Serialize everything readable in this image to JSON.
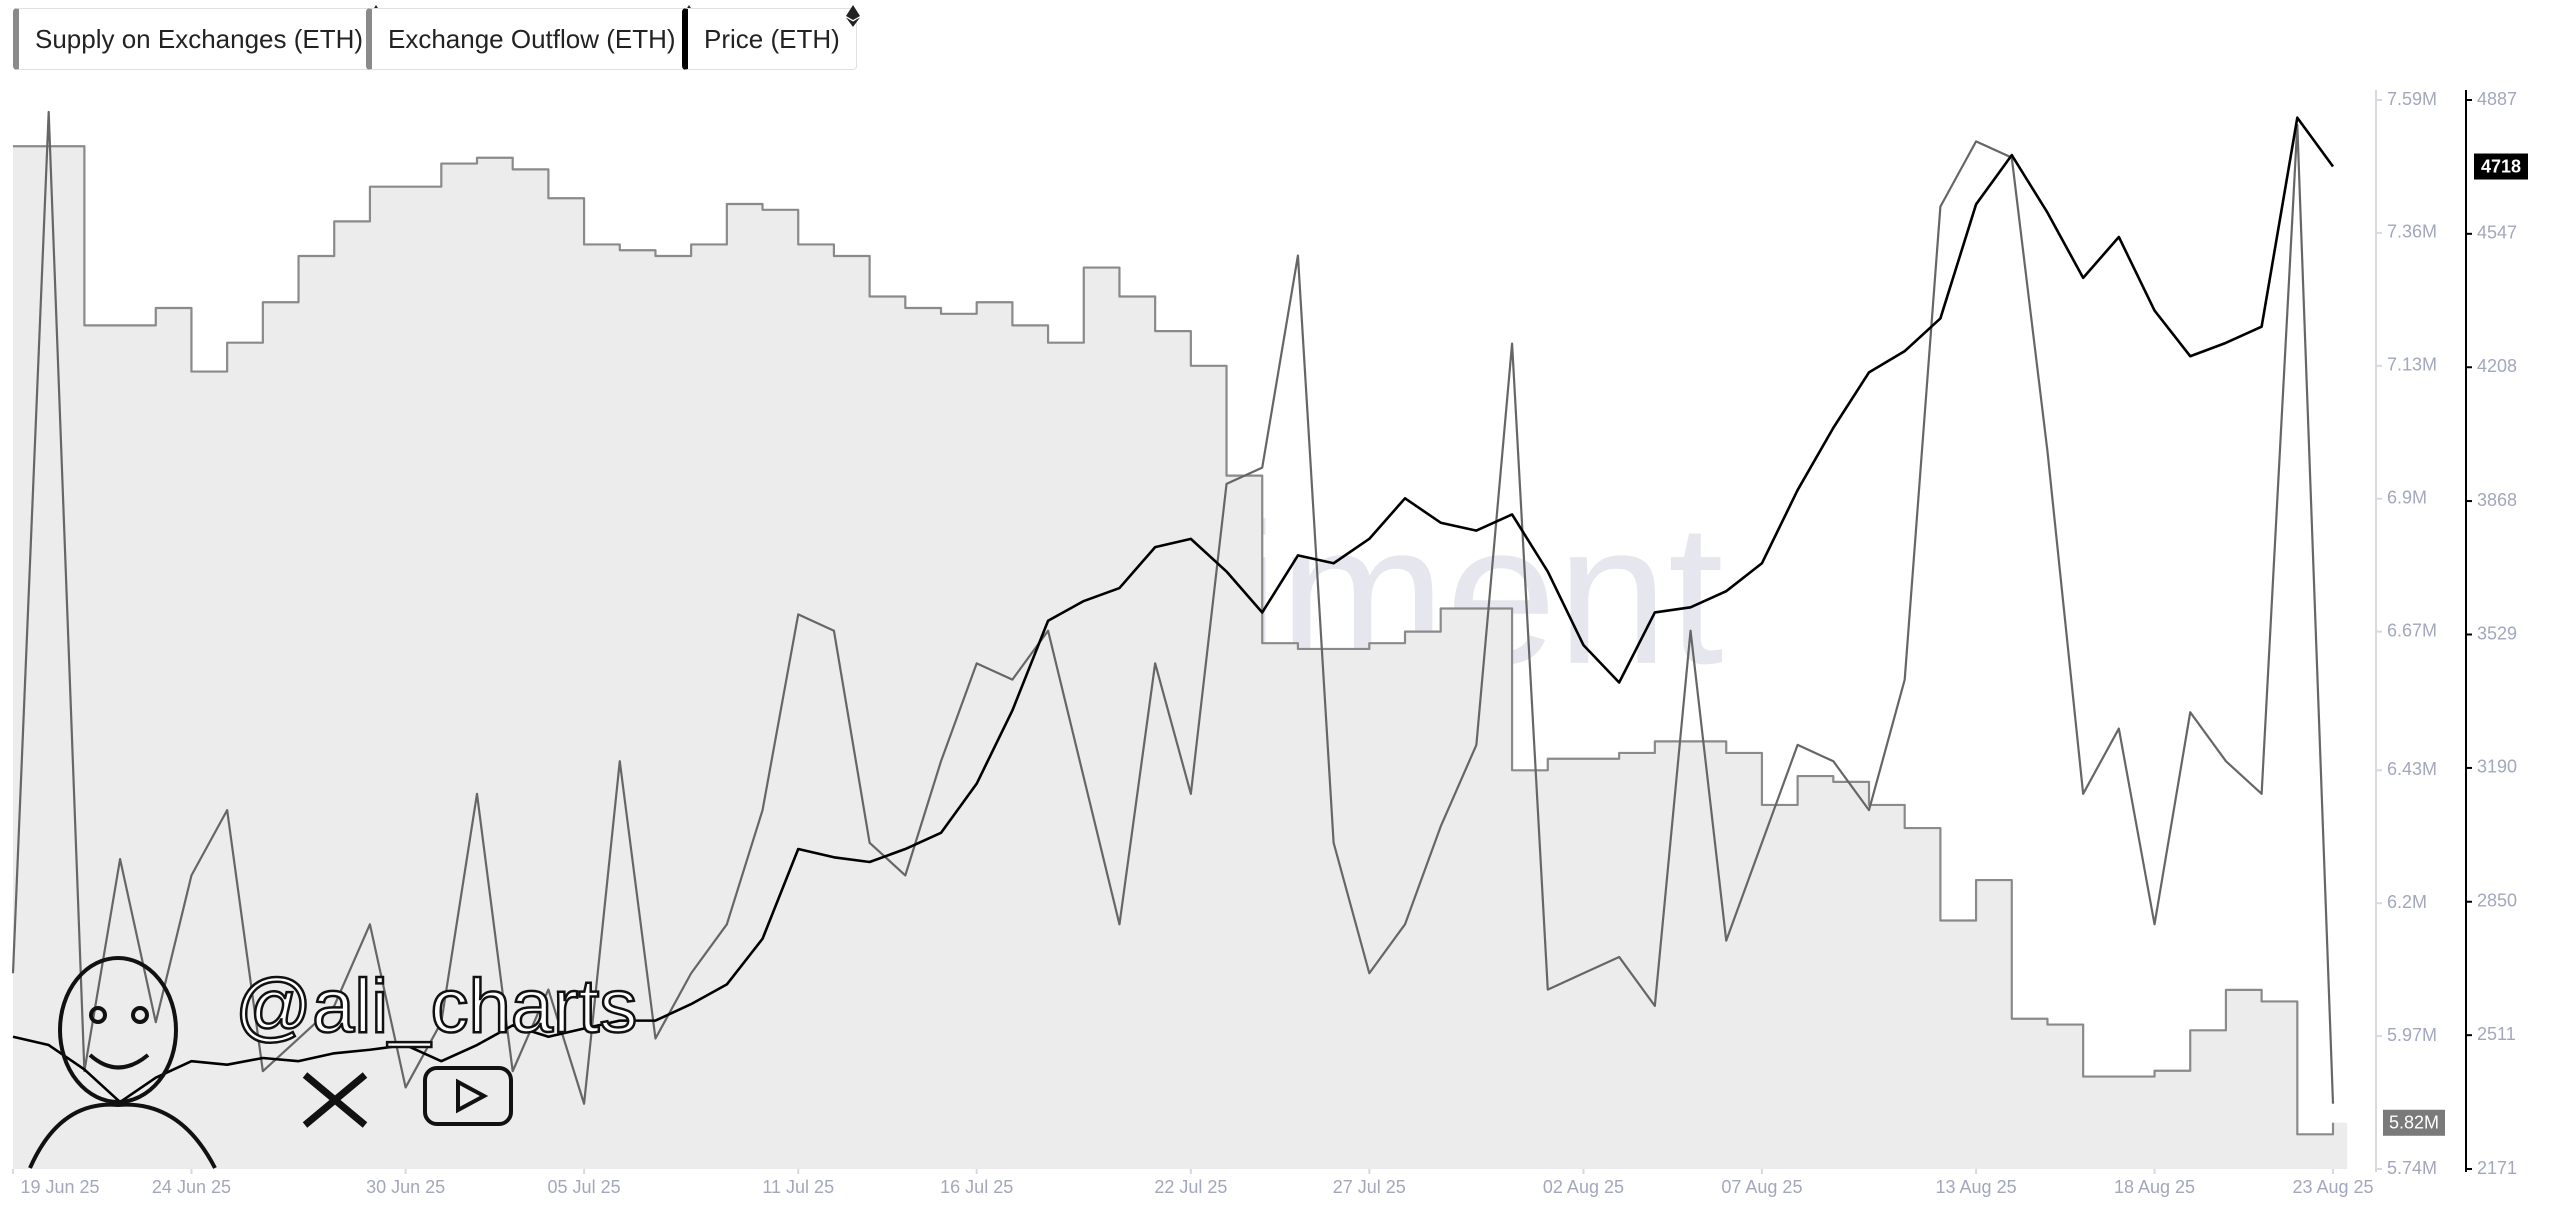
{
  "chart_data": {
    "type": "line",
    "x": [
      "2025-06-19",
      "2025-06-20",
      "2025-06-21",
      "2025-06-22",
      "2025-06-23",
      "2025-06-24",
      "2025-06-25",
      "2025-06-26",
      "2025-06-27",
      "2025-06-28",
      "2025-06-29",
      "2025-06-30",
      "2025-07-01",
      "2025-07-02",
      "2025-07-03",
      "2025-07-04",
      "2025-07-05",
      "2025-07-06",
      "2025-07-07",
      "2025-07-08",
      "2025-07-09",
      "2025-07-10",
      "2025-07-11",
      "2025-07-12",
      "2025-07-13",
      "2025-07-14",
      "2025-07-15",
      "2025-07-16",
      "2025-07-17",
      "2025-07-18",
      "2025-07-19",
      "2025-07-20",
      "2025-07-21",
      "2025-07-22",
      "2025-07-23",
      "2025-07-24",
      "2025-07-25",
      "2025-07-26",
      "2025-07-27",
      "2025-07-28",
      "2025-07-29",
      "2025-07-30",
      "2025-07-31",
      "2025-08-01",
      "2025-08-02",
      "2025-08-03",
      "2025-08-04",
      "2025-08-05",
      "2025-08-06",
      "2025-08-07",
      "2025-08-08",
      "2025-08-09",
      "2025-08-10",
      "2025-08-11",
      "2025-08-12",
      "2025-08-13",
      "2025-08-14",
      "2025-08-15",
      "2025-08-16",
      "2025-08-17",
      "2025-08-18",
      "2025-08-19",
      "2025-08-20",
      "2025-08-21",
      "2025-08-22",
      "2025-08-23"
    ],
    "xlim": [
      "2025-06-19",
      "2025-08-23"
    ],
    "xticks": [
      {
        "value": "2025-06-19",
        "label": "19 Jun 25"
      },
      {
        "value": "2025-06-24",
        "label": "24 Jun 25"
      },
      {
        "value": "2025-06-30",
        "label": "30 Jun 25"
      },
      {
        "value": "2025-07-05",
        "label": "05 Jul 25"
      },
      {
        "value": "2025-07-11",
        "label": "11 Jul 25"
      },
      {
        "value": "2025-07-16",
        "label": "16 Jul 25"
      },
      {
        "value": "2025-07-22",
        "label": "22 Jul 25"
      },
      {
        "value": "2025-07-27",
        "label": "27 Jul 25"
      },
      {
        "value": "2025-08-02",
        "label": "02 Aug 25"
      },
      {
        "value": "2025-08-07",
        "label": "07 Aug 25"
      },
      {
        "value": "2025-08-13",
        "label": "13 Aug 25"
      },
      {
        "value": "2025-08-18",
        "label": "18 Aug 25"
      },
      {
        "value": "2025-08-23",
        "label": "23 Aug 25"
      }
    ],
    "ylim": [
      5740000,
      7590000
    ],
    "yticks": [
      {
        "value": 7590000,
        "label": "7.59M"
      },
      {
        "value": 7360000,
        "label": "7.36M"
      },
      {
        "value": 7130000,
        "label": "7.13M"
      },
      {
        "value": 6900000,
        "label": "6.9M"
      },
      {
        "value": 6670000,
        "label": "6.67M"
      },
      {
        "value": 6430000,
        "label": "6.43M"
      },
      {
        "value": 6200000,
        "label": "6.2M"
      },
      {
        "value": 5970000,
        "label": "5.97M"
      },
      {
        "value": 5740000,
        "label": "5.74M"
      }
    ],
    "y2lim": [
      2171,
      4887
    ],
    "y2ticks": [
      4887,
      4547,
      4208,
      3868,
      3529,
      3190,
      2850,
      2511,
      2171
    ],
    "series": [
      {
        "name": "Supply on Exchanges (ETH)",
        "color": "#8a8a8a",
        "fill": "#ececec",
        "step": true,
        "values": [
          7510000,
          7510000,
          7200000,
          7200000,
          7230000,
          7120000,
          7170000,
          7240000,
          7320000,
          7380000,
          7440000,
          7440000,
          7480000,
          7490000,
          7470000,
          7420000,
          7340000,
          7330000,
          7320000,
          7340000,
          7410000,
          7400000,
          7340000,
          7320000,
          7250000,
          7230000,
          7220000,
          7240000,
          7200000,
          7170000,
          7300000,
          7250000,
          7190000,
          7130000,
          6940000,
          6650000,
          6640000,
          6640000,
          6650000,
          6670000,
          6710000,
          6710000,
          6430000,
          6450000,
          6450000,
          6460000,
          6480000,
          6480000,
          6460000,
          6370000,
          6420000,
          6410000,
          6370000,
          6330000,
          6170000,
          6240000,
          6000000,
          5990000,
          5900000,
          5900000,
          5910000,
          5980000,
          6050000,
          6030000,
          5800000,
          5820000
        ],
        "value_labels": [
          null,
          null,
          null,
          null,
          null,
          null,
          null,
          null,
          null,
          null,
          null,
          null,
          null,
          null,
          null,
          null,
          null,
          null,
          null,
          null,
          null,
          null,
          null,
          null,
          null,
          null,
          null,
          null,
          null,
          null,
          null,
          null,
          null,
          null,
          null,
          null,
          null,
          null,
          null,
          null,
          null,
          null,
          null,
          null,
          null,
          null,
          null,
          null,
          null,
          null,
          null,
          null,
          null,
          null,
          null,
          null,
          null,
          null,
          null,
          null,
          null,
          null,
          null,
          null,
          null,
          "5.82M"
        ]
      },
      {
        "name": "Exchange Outflow (ETH)",
        "color": "#666666",
        "axis": "hidden",
        "values": [
          120,
          648,
          60,
          190,
          90,
          180,
          220,
          60,
          80,
          100,
          150,
          50,
          90,
          230,
          60,
          110,
          40,
          250,
          80,
          120,
          150,
          220,
          340,
          330,
          200,
          180,
          250,
          310,
          300,
          330,
          240,
          150,
          310,
          230,
          420,
          430,
          560,
          200,
          120,
          150,
          210,
          260,
          506,
          110,
          120,
          130,
          100,
          330,
          140,
          200,
          260,
          250,
          220,
          300,
          590,
          630,
          620,
          440,
          230,
          270,
          150,
          280,
          250,
          230,
          640,
          40
        ]
      },
      {
        "name": "Price (ETH)",
        "color": "#000000",
        "axis": "y2",
        "values": [
          2507,
          2486,
          2424,
          2341,
          2403,
          2445,
          2436,
          2453,
          2445,
          2465,
          2474,
          2486,
          2445,
          2486,
          2536,
          2507,
          2528,
          2548,
          2548,
          2590,
          2640,
          2756,
          2984,
          2963,
          2951,
          2984,
          3025,
          3150,
          3336,
          3564,
          3614,
          3647,
          3751,
          3772,
          3689,
          3585,
          3730,
          3710,
          3772,
          3875,
          3813,
          3793,
          3834,
          3689,
          3502,
          3407,
          3585,
          3598,
          3639,
          3710,
          3896,
          4054,
          4195,
          4249,
          4332,
          4622,
          4747,
          4601,
          4435,
          4539,
          4352,
          4236,
          4270,
          4311,
          4842,
          4718
        ]
      }
    ],
    "watermark": "santiment",
    "annotations": [
      "@ali_charts"
    ]
  }
}
